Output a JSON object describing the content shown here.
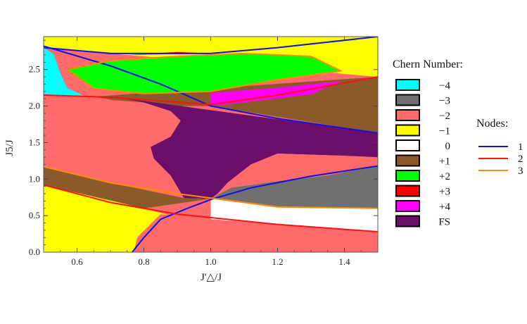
{
  "chart_data": {
    "type": "area",
    "xlabel": "J'△/J",
    "ylabel": "J5/J",
    "xlim": [
      0.5,
      1.5
    ],
    "ylim": [
      0.0,
      2.95
    ],
    "xticks": [
      "0.6",
      "0.8",
      "1.0",
      "1.2",
      "1.4"
    ],
    "yticks": [
      "0.0",
      "0.5",
      "1.0",
      "1.5",
      "2.0",
      "2.5"
    ],
    "chern_legend": {
      "title": "Chern Number:",
      "entries": [
        {
          "label": "−4",
          "color": "#00FFFF"
        },
        {
          "label": "−3",
          "color": "#707070"
        },
        {
          "label": "−2",
          "color": "#FF6B6B"
        },
        {
          "label": "−1",
          "color": "#FFFF00"
        },
        {
          "label": "0",
          "color": "#FFFFFF"
        },
        {
          "label": "+1",
          "color": "#8B5A2B"
        },
        {
          "label": "+2",
          "color": "#00FF00"
        },
        {
          "label": "+3",
          "color": "#FF0000"
        },
        {
          "label": "+4",
          "color": "#FF00FF"
        },
        {
          "label": "FS",
          "color": "#6B0F6B"
        }
      ]
    },
    "nodes_legend": {
      "title": "Nodes:",
      "entries": [
        {
          "label": "1",
          "color": "#1010E0"
        },
        {
          "label": "2",
          "color": "#FF1010"
        },
        {
          "label": "3",
          "color": "#FF8C00"
        }
      ]
    },
    "regions": [
      {
        "chern": "−1",
        "color": "#FFFF00",
        "points": [
          [
            0.5,
            2.95
          ],
          [
            1.5,
            2.95
          ],
          [
            1.5,
            2.4
          ],
          [
            0.5,
            2.8
          ]
        ]
      },
      {
        "chern": "−4",
        "color": "#00FFFF",
        "points": [
          [
            0.5,
            2.8
          ],
          [
            0.53,
            2.71
          ],
          [
            0.55,
            2.45
          ],
          [
            0.57,
            2.25
          ],
          [
            0.62,
            2.14
          ],
          [
            0.75,
            2.1
          ],
          [
            0.5,
            2.15
          ]
        ]
      },
      {
        "chern": "+1",
        "color": "#8B5A2B",
        "points": [
          [
            0.65,
            2.13
          ],
          [
            1.5,
            2.4
          ],
          [
            1.5,
            1.63
          ],
          [
            1.0,
            2.0
          ],
          [
            0.8,
            2.0
          ],
          [
            0.65,
            2.13
          ]
        ]
      },
      {
        "chern": "−2",
        "color": "#FF6B6B",
        "points": [
          [
            0.5,
            2.15
          ],
          [
            0.8,
            2.05
          ],
          [
            0.88,
            1.93
          ],
          [
            0.91,
            1.8
          ],
          [
            0.88,
            1.58
          ],
          [
            0.82,
            1.44
          ],
          [
            0.83,
            1.28
          ],
          [
            0.88,
            1.05
          ],
          [
            0.92,
            0.74
          ],
          [
            0.7,
            0.78
          ],
          [
            0.5,
            1.17
          ]
        ]
      },
      {
        "chern": "FS",
        "color": "#6B0F6B",
        "points": [
          [
            0.72,
            2.12
          ],
          [
            1.5,
            1.63
          ],
          [
            1.5,
            1.3
          ],
          [
            1.4,
            1.32
          ],
          [
            1.2,
            1.35
          ],
          [
            1.12,
            1.2
          ],
          [
            1.05,
            0.95
          ],
          [
            1.02,
            0.8
          ],
          [
            1.0,
            0.73
          ],
          [
            0.92,
            0.74
          ],
          [
            0.88,
            1.05
          ],
          [
            0.83,
            1.28
          ],
          [
            0.82,
            1.44
          ],
          [
            0.88,
            1.58
          ],
          [
            0.91,
            1.8
          ],
          [
            0.88,
            1.93
          ],
          [
            0.8,
            2.05
          ]
        ]
      },
      {
        "chern": "−2",
        "color": "#FF6B6B",
        "points": [
          [
            1.05,
            0.95
          ],
          [
            1.12,
            1.2
          ],
          [
            1.2,
            1.35
          ],
          [
            1.4,
            1.32
          ],
          [
            1.5,
            1.3
          ],
          [
            1.5,
            1.18
          ],
          [
            1.35,
            1.05
          ],
          [
            1.2,
            0.97
          ],
          [
            1.06,
            0.88
          ]
        ]
      },
      {
        "chern": "+1",
        "color": "#8B5A2B",
        "points": [
          [
            0.5,
            1.17
          ],
          [
            0.7,
            0.95
          ],
          [
            0.92,
            0.74
          ],
          [
            1.0,
            0.73
          ],
          [
            0.8,
            0.6
          ],
          [
            0.5,
            0.92
          ]
        ]
      },
      {
        "chern": "−3",
        "color": "#707070",
        "points": [
          [
            1.0,
            0.73
          ],
          [
            1.06,
            0.88
          ],
          [
            1.2,
            0.97
          ],
          [
            1.35,
            1.05
          ],
          [
            1.5,
            1.18
          ],
          [
            1.5,
            0.6
          ],
          [
            1.2,
            0.62
          ],
          [
            1.0,
            0.73
          ]
        ]
      },
      {
        "chern": "0",
        "color": "#FFFFFF",
        "points": [
          [
            1.0,
            0.73
          ],
          [
            1.2,
            0.62
          ],
          [
            1.5,
            0.6
          ],
          [
            1.5,
            0.28
          ],
          [
            1.2,
            0.38
          ],
          [
            1.0,
            0.45
          ]
        ]
      },
      {
        "chern": "−1",
        "color": "#FFFF00",
        "points": [
          [
            0.5,
            0.92
          ],
          [
            0.8,
            0.6
          ],
          [
            0.88,
            0.5
          ],
          [
            0.7,
            0.46
          ],
          [
            0.5,
            0.0
          ],
          [
            0.5,
            0.0
          ]
        ]
      },
      {
        "chern": "−1",
        "color": "#FFFF00",
        "points": [
          [
            0.5,
            0.92
          ],
          [
            0.85,
            0.52
          ],
          [
            0.78,
            0.2
          ],
          [
            0.77,
            0.0
          ],
          [
            0.5,
            0.0
          ]
        ]
      },
      {
        "chern": "−2",
        "color": "#FF6B6B",
        "points": [
          [
            0.77,
            0.0
          ],
          [
            0.78,
            0.2
          ],
          [
            0.85,
            0.52
          ],
          [
            1.0,
            0.45
          ],
          [
            1.2,
            0.38
          ],
          [
            1.5,
            0.28
          ],
          [
            1.5,
            0.0
          ]
        ]
      },
      {
        "chern": "+2",
        "color": "#00FF00",
        "points": [
          [
            0.57,
            2.5
          ],
          [
            0.7,
            2.62
          ],
          [
            0.9,
            2.68
          ],
          [
            1.1,
            2.72
          ],
          [
            1.3,
            2.68
          ],
          [
            1.39,
            2.48
          ],
          [
            1.2,
            2.36
          ],
          [
            1.0,
            2.2
          ],
          [
            0.8,
            2.17
          ],
          [
            0.65,
            2.24
          ]
        ]
      },
      {
        "chern": "+3",
        "color": "#FF0000",
        "points": [
          [
            0.75,
            2.7
          ],
          [
            1.0,
            2.72
          ],
          [
            0.9,
            2.74
          ]
        ]
      },
      {
        "chern": "+4",
        "color": "#FF00FF",
        "points": [
          [
            1.0,
            2.0
          ],
          [
            1.0,
            2.18
          ],
          [
            1.2,
            2.25
          ],
          [
            1.39,
            2.34
          ],
          [
            1.3,
            2.16
          ],
          [
            1.1,
            2.05
          ]
        ]
      }
    ],
    "node_lines": [
      {
        "nodes": "1",
        "color": "#1010E0",
        "points": [
          [
            0.5,
            2.82
          ],
          [
            0.7,
            2.55
          ],
          [
            0.85,
            2.3
          ],
          [
            1.0,
            2.0
          ],
          [
            1.2,
            1.83
          ],
          [
            1.5,
            1.63
          ]
        ]
      },
      {
        "nodes": "1",
        "color": "#1010E0",
        "points": [
          [
            0.5,
            2.8
          ],
          [
            0.7,
            2.72
          ],
          [
            1.0,
            2.72
          ],
          [
            1.2,
            2.8
          ],
          [
            1.5,
            2.95
          ]
        ]
      },
      {
        "nodes": "1",
        "color": "#1010E0",
        "points": [
          [
            0.765,
            0.0
          ],
          [
            0.8,
            0.2
          ],
          [
            0.85,
            0.45
          ],
          [
            0.93,
            0.6
          ],
          [
            1.0,
            0.72
          ],
          [
            1.12,
            0.88
          ],
          [
            1.3,
            1.04
          ],
          [
            1.5,
            1.18
          ]
        ]
      },
      {
        "nodes": "2",
        "color": "#FF1010",
        "points": [
          [
            0.5,
            2.15
          ],
          [
            0.7,
            2.12
          ],
          [
            1.0,
            2.02
          ],
          [
            1.2,
            2.15
          ],
          [
            1.5,
            2.4
          ]
        ]
      },
      {
        "nodes": "2",
        "color": "#FF1010",
        "points": [
          [
            0.5,
            0.92
          ],
          [
            0.7,
            0.68
          ],
          [
            0.9,
            0.52
          ],
          [
            1.2,
            0.38
          ],
          [
            1.5,
            0.28
          ]
        ]
      },
      {
        "nodes": "3",
        "color": "#FF8C00",
        "points": [
          [
            0.57,
            2.5
          ],
          [
            0.7,
            2.62
          ],
          [
            0.9,
            2.68
          ],
          [
            1.1,
            2.72
          ],
          [
            1.3,
            2.68
          ],
          [
            1.39,
            2.48
          ],
          [
            1.2,
            2.36
          ],
          [
            1.0,
            2.2
          ],
          [
            0.8,
            2.17
          ],
          [
            0.65,
            2.24
          ],
          [
            0.57,
            2.5
          ]
        ]
      },
      {
        "nodes": "3",
        "color": "#FF8C00",
        "points": [
          [
            0.5,
            1.17
          ],
          [
            0.7,
            0.95
          ],
          [
            0.9,
            0.8
          ],
          [
            1.2,
            0.62
          ],
          [
            1.5,
            0.6
          ]
        ]
      }
    ]
  }
}
